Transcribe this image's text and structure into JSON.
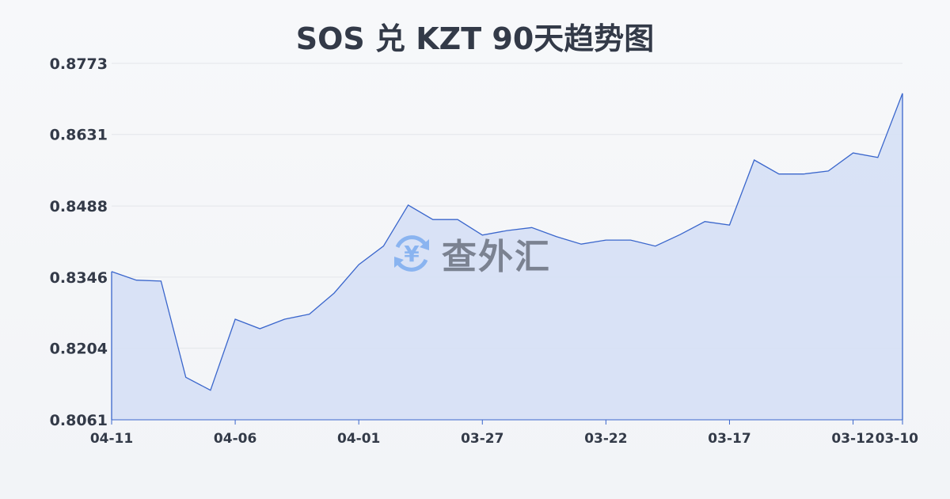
{
  "title": "SOS 兑 KZT 90天趋势图",
  "watermark": "查外汇",
  "colors": {
    "line": "#3a66cc",
    "fill": "#d6e0f5",
    "grid": "#e3e6ea",
    "text": "#333a48",
    "watermark_icon": "#8ab4f0"
  },
  "chart_data": {
    "type": "area",
    "title": "SOS 兑 KZT 90天趋势图",
    "xlabel": "",
    "ylabel": "",
    "ylim": [
      0.8061,
      0.8773
    ],
    "yticks": [
      "0.8773",
      "0.8631",
      "0.8488",
      "0.8346",
      "0.8204",
      "0.8061"
    ],
    "xticks": [
      "04-11",
      "04-06",
      "04-01",
      "03-27",
      "03-22",
      "03-17",
      "03-12",
      "03-10"
    ],
    "grid": true,
    "x": [
      "04-11",
      "04-10",
      "04-09",
      "04-08",
      "04-07",
      "04-06",
      "04-05",
      "04-04",
      "04-03",
      "04-02",
      "04-01",
      "03-31",
      "03-30",
      "03-29",
      "03-28",
      "03-27",
      "03-26",
      "03-25",
      "03-24",
      "03-23",
      "03-22",
      "03-21",
      "03-20",
      "03-19",
      "03-18",
      "03-17",
      "03-16",
      "03-15",
      "03-14",
      "03-13",
      "03-12",
      "03-11",
      "03-10"
    ],
    "values": [
      0.8357,
      0.834,
      0.8338,
      0.8146,
      0.812,
      0.8262,
      0.8243,
      0.8262,
      0.8272,
      0.8314,
      0.8371,
      0.8408,
      0.849,
      0.8461,
      0.8461,
      0.843,
      0.8439,
      0.8445,
      0.8427,
      0.8412,
      0.842,
      0.842,
      0.8408,
      0.8431,
      0.8457,
      0.845,
      0.858,
      0.8552,
      0.8552,
      0.8558,
      0.8594,
      0.8585,
      0.8713
    ]
  }
}
